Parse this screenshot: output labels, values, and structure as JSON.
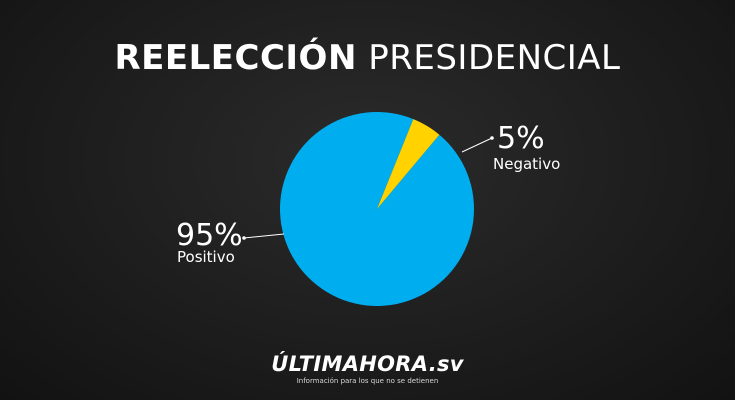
{
  "title_bold": "REELECCIÓN",
  "title_light": "PRESIDENCIAL",
  "colors": {
    "positivo": "#00aeef",
    "negativo": "#ffd200"
  },
  "chart_data": {
    "type": "pie",
    "categories": [
      "Negativo",
      "Positivo"
    ],
    "values": [
      5,
      95
    ],
    "value_labels": [
      "5%",
      "95%"
    ],
    "legend": "none"
  },
  "logo": {
    "name": "ÚLTIMAHORA.sv",
    "tagline": "Información para los que no se detienen"
  }
}
